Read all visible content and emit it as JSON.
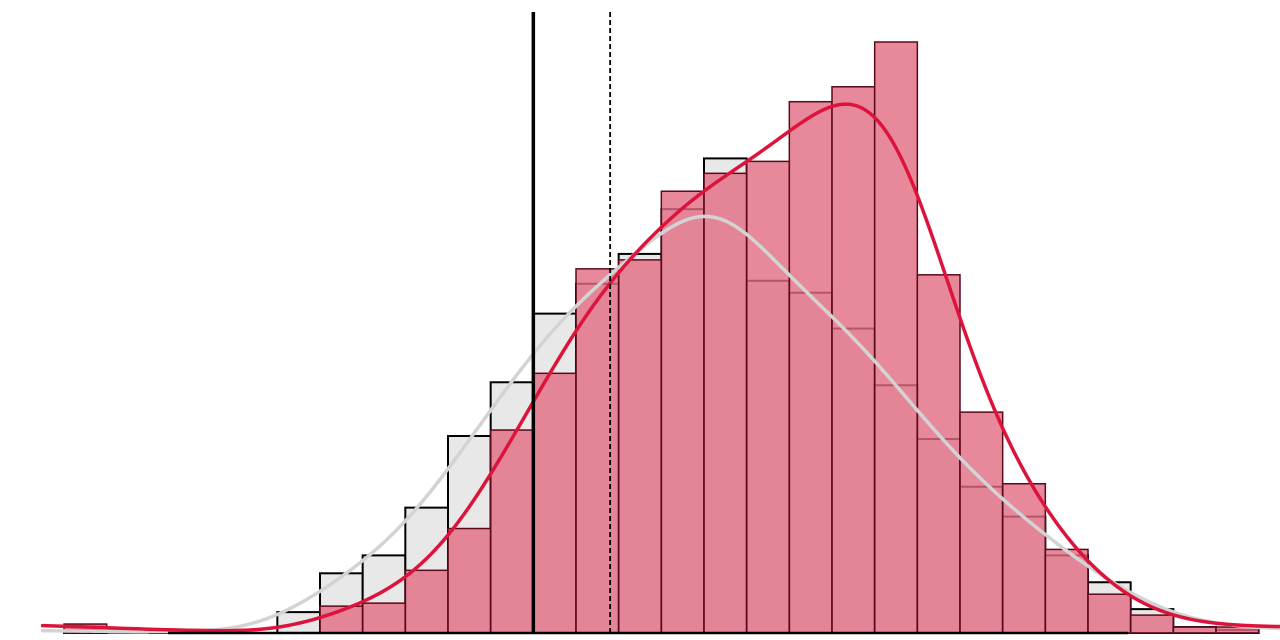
{
  "chart_data": {
    "type": "bar",
    "title": "",
    "xlabel": "",
    "ylabel": "",
    "grid": false,
    "legend": "none",
    "xlim": [
      -12.5,
      17.5
    ],
    "ylim": [
      0,
      19.8
    ],
    "bin_width": 1,
    "bins_start": -11,
    "series": [
      {
        "style": "gray-outline",
        "fill": "#e8e8e8",
        "stroke": "#000000",
        "curve_color": "#d3d3d3",
        "values": [
          0.1,
          0,
          0.1,
          0,
          0,
          0.7,
          2,
          2.6,
          4.2,
          6.6,
          8.4,
          10.7,
          11.7,
          12.7,
          14.2,
          15.9,
          11.8,
          11.4,
          10.2,
          8.3,
          6.5,
          4.9,
          3.9,
          2.6,
          1.7,
          0.8,
          0.2,
          0.1
        ]
      },
      {
        "style": "red-filled",
        "fill": "#e26b82",
        "stroke": "#5a0a1a",
        "curve_color": "#dc143c",
        "values": [
          0.3,
          0.1,
          0.1,
          0.1,
          0,
          0,
          0.9,
          1,
          2.1,
          3.5,
          6.8,
          8.7,
          12.2,
          12.5,
          14.8,
          15.4,
          15.8,
          17.8,
          18.3,
          19.8,
          12,
          7.4,
          5,
          2.8,
          1.3,
          0.6,
          0.2,
          0.2
        ]
      }
    ],
    "vlines": [
      {
        "x": 0,
        "style": "solid"
      },
      {
        "x": 1.8,
        "style": "dashed"
      }
    ],
    "colors": {
      "gray_fill": "#e8e8e8",
      "red_fill": "#e26b82",
      "red_curve": "#dc143c",
      "gray_curve": "#d3d3d3",
      "baseline": "#000000"
    }
  }
}
